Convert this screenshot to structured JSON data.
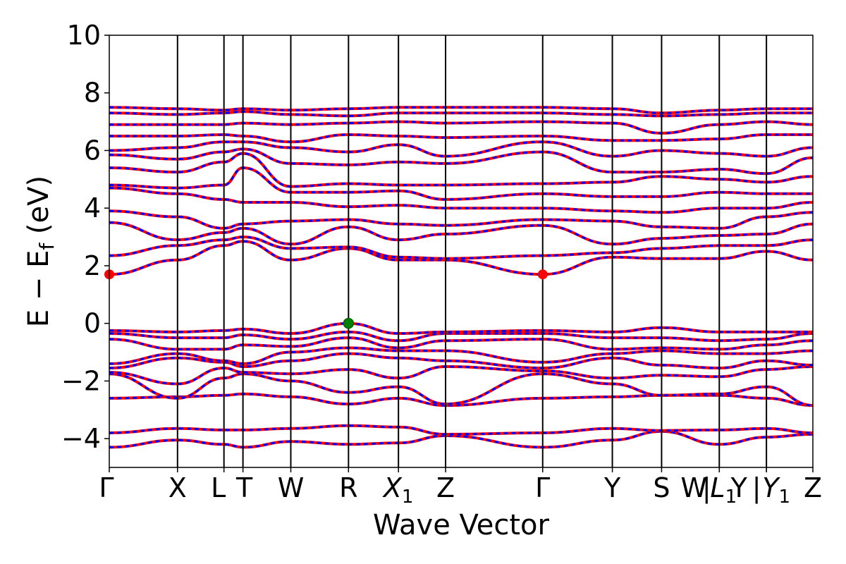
{
  "chart_data": {
    "type": "line",
    "title": "",
    "xlabel": "Wave Vector",
    "ylabel": "E − E",
    "ylabel_subscript": "f",
    "ylabel_unit": "(eV)",
    "ylim": [
      -5,
      10
    ],
    "yticks": [
      -4,
      -2,
      0,
      2,
      4,
      6,
      8,
      10
    ],
    "ytick_labels": [
      "−4",
      "−2",
      "0",
      "2",
      "4",
      "6",
      "8",
      "10"
    ],
    "xlim": [
      0,
      1
    ],
    "kpoints": [
      {
        "label": "Γ",
        "x": 0.0
      },
      {
        "label": "X",
        "x": 0.097
      },
      {
        "label": "L",
        "x": 0.163
      },
      {
        "label": "T",
        "x": 0.19
      },
      {
        "label": "W",
        "x": 0.258
      },
      {
        "label": "R",
        "x": 0.34
      },
      {
        "label": "X",
        "sub": "1",
        "x": 0.411
      },
      {
        "label": "Z",
        "x": 0.478
      },
      {
        "label": "Γ",
        "x": 0.616
      },
      {
        "label": "Y",
        "x": 0.715
      },
      {
        "label": "S",
        "x": 0.785
      },
      {
        "label": "W",
        "x": 0.867
      },
      {
        "label": "|",
        "x": 0.867
      },
      {
        "label": "L",
        "sub": "1",
        "x": 0.867
      },
      {
        "label": "Y",
        "x": 0.867
      },
      {
        "label": "|",
        "x": 0.934
      },
      {
        "label": "Y",
        "sub": "1",
        "x": 0.934
      },
      {
        "label": "Z",
        "x": 1.0
      }
    ],
    "series": [
      {
        "role": "spin-up",
        "color": "#ff0000",
        "style": "solid"
      },
      {
        "role": "spin-down",
        "color": "#0000ff",
        "style": "dashed"
      }
    ],
    "valence_bands_at_kpoints": [
      [
        -4.3,
        -4.05,
        -4.2,
        -4.3,
        -4.1,
        -4.2,
        -4.15,
        -3.9,
        -4.3,
        -4.05,
        -3.75,
        -4.2,
        -3.95,
        -3.85
      ],
      [
        -3.8,
        -3.65,
        -3.7,
        -3.7,
        -3.65,
        -3.55,
        -3.6,
        -3.85,
        -3.8,
        -3.65,
        -3.72,
        -3.7,
        -3.65,
        -3.8
      ],
      [
        -2.6,
        -2.55,
        -2.5,
        -2.45,
        -2.55,
        -2.8,
        -2.6,
        -2.85,
        -2.6,
        -2.55,
        -2.5,
        -2.5,
        -2.6,
        -2.85
      ],
      [
        -1.75,
        -2.6,
        -1.9,
        -1.75,
        -2.0,
        -2.4,
        -2.2,
        -2.8,
        -1.75,
        -2.1,
        -2.5,
        -2.45,
        -2.2,
        -2.85
      ],
      [
        -1.7,
        -2.1,
        -1.55,
        -1.7,
        -1.75,
        -1.6,
        -1.9,
        -1.5,
        -1.65,
        -1.9,
        -1.8,
        -1.85,
        -1.6,
        -1.5
      ],
      [
        -1.55,
        -1.2,
        -1.35,
        -1.5,
        -1.3,
        -1.05,
        -1.2,
        -1.3,
        -1.55,
        -1.2,
        -1.45,
        -1.55,
        -1.3,
        -1.45
      ],
      [
        -1.4,
        -1.05,
        -1.3,
        -1.4,
        -1.0,
        -0.85,
        -0.95,
        -0.95,
        -1.35,
        -1.05,
        -0.95,
        -1.05,
        -1.05,
        -0.95
      ],
      [
        -0.55,
        -0.9,
        -0.9,
        -0.75,
        -0.8,
        -0.5,
        -0.85,
        -0.6,
        -0.55,
        -0.9,
        -0.85,
        -0.9,
        -0.75,
        -0.6
      ],
      [
        -0.35,
        -0.5,
        -0.5,
        -0.4,
        -0.55,
        -0.3,
        -0.6,
        -0.35,
        -0.35,
        -0.5,
        -0.5,
        -0.6,
        -0.55,
        -0.35
      ],
      [
        -0.25,
        -0.3,
        -0.25,
        -0.2,
        -0.35,
        0.0,
        -0.35,
        -0.3,
        -0.25,
        -0.3,
        -0.15,
        -0.3,
        -0.3,
        -0.3
      ]
    ],
    "conduction_bands_at_kpoints": [
      [
        1.7,
        2.2,
        2.7,
        2.85,
        2.2,
        2.6,
        2.2,
        2.2,
        1.7,
        2.3,
        2.25,
        2.25,
        2.5,
        2.2
      ],
      [
        2.35,
        2.7,
        2.9,
        3.0,
        2.6,
        2.65,
        2.3,
        2.25,
        2.35,
        2.45,
        2.6,
        2.7,
        2.7,
        2.9
      ],
      [
        3.5,
        2.9,
        3.15,
        3.3,
        2.75,
        3.35,
        2.9,
        3.1,
        3.4,
        2.75,
        2.95,
        3.05,
        3.1,
        3.45
      ],
      [
        3.9,
        3.7,
        3.3,
        3.45,
        3.55,
        3.6,
        3.45,
        3.4,
        3.6,
        3.55,
        3.35,
        3.3,
        3.7,
        3.85
      ],
      [
        4.7,
        4.5,
        4.3,
        4.2,
        4.2,
        4.05,
        4.1,
        4.0,
        4.0,
        3.9,
        3.85,
        4.0,
        4.0,
        4.2
      ],
      [
        4.8,
        4.7,
        4.8,
        5.4,
        4.55,
        4.55,
        4.6,
        4.3,
        4.5,
        4.4,
        4.4,
        4.55,
        4.5,
        4.5
      ],
      [
        5.4,
        5.25,
        5.6,
        5.9,
        4.75,
        4.85,
        4.8,
        4.8,
        4.85,
        4.9,
        5.1,
        5.0,
        4.9,
        5.1
      ],
      [
        5.85,
        5.7,
        5.95,
        6.05,
        5.55,
        5.5,
        5.6,
        5.55,
        5.95,
        5.25,
        5.25,
        5.35,
        5.2,
        5.75
      ],
      [
        6.0,
        6.1,
        6.3,
        6.3,
        6.1,
        5.95,
        6.2,
        5.8,
        6.3,
        5.8,
        6.0,
        5.9,
        5.8,
        6.1
      ],
      [
        6.5,
        6.5,
        6.55,
        6.5,
        6.3,
        6.55,
        6.5,
        6.45,
        6.5,
        6.35,
        6.35,
        6.4,
        6.55,
        6.55
      ],
      [
        6.9,
        6.9,
        6.9,
        6.95,
        6.9,
        6.95,
        7.0,
        6.95,
        7.0,
        6.95,
        6.6,
        6.9,
        7.0,
        6.9
      ],
      [
        7.3,
        7.25,
        7.3,
        7.35,
        7.25,
        7.2,
        7.3,
        7.3,
        7.3,
        7.25,
        7.2,
        7.25,
        7.3,
        7.3
      ],
      [
        7.5,
        7.45,
        7.4,
        7.45,
        7.4,
        7.45,
        7.5,
        7.5,
        7.5,
        7.45,
        7.3,
        7.4,
        7.45,
        7.45
      ]
    ],
    "markers": [
      {
        "name": "cbm-marker",
        "x": 0.0,
        "y": 1.7,
        "color": "#ff0000"
      },
      {
        "name": "cbm-marker",
        "x": 0.616,
        "y": 1.7,
        "color": "#ff0000"
      },
      {
        "name": "vbm-marker",
        "x": 0.34,
        "y": 0.0,
        "color": "#008000"
      }
    ],
    "grid": false,
    "legend": "none"
  }
}
